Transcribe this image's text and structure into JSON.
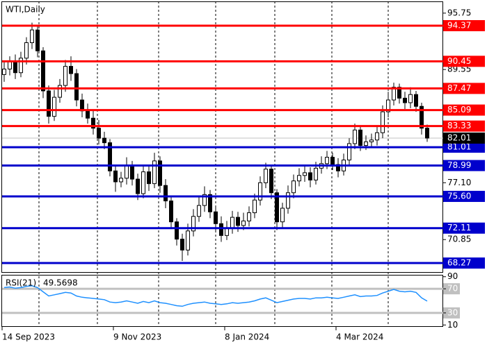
{
  "chart_data": {
    "type": "candlestick",
    "title": "WTI,Daily",
    "categories": [
      "14 Sep 2023",
      null,
      null,
      null,
      null,
      null,
      null,
      null,
      null,
      null,
      null,
      null,
      null,
      null,
      null,
      null,
      null,
      null,
      null,
      null,
      "9 Nov 2023",
      null,
      null,
      null,
      null,
      null,
      null,
      null,
      null,
      null,
      null,
      null,
      null,
      null,
      null,
      null,
      null,
      null,
      null,
      null,
      "8 Jan 2024",
      null,
      null,
      null,
      null,
      null,
      null,
      null,
      null,
      null,
      null,
      null,
      null,
      null,
      null,
      null,
      null,
      null,
      null,
      null,
      "4 Mar 2024",
      null,
      null,
      null,
      null,
      null,
      null,
      null,
      null,
      null,
      null,
      null,
      null,
      null,
      null,
      null,
      null
    ],
    "open": [
      89.0,
      89.6,
      90.4,
      89.2,
      90.8,
      92.5,
      93.9,
      91.6,
      87.2,
      84.4,
      86.5,
      87.8,
      89.9,
      89.1,
      86.2,
      85.0,
      84.2,
      83.1,
      82.0,
      81.5,
      78.4,
      77.2,
      77.6,
      79.0,
      77.5,
      75.9,
      78.3,
      77.0,
      79.5,
      76.8,
      75.1,
      72.8,
      70.9,
      69.7,
      71.8,
      73.4,
      74.6,
      75.8,
      73.9,
      72.6,
      71.3,
      72.1,
      73.3,
      72.4,
      72.9,
      73.8,
      75.2,
      77.1,
      78.6,
      76.0,
      72.8,
      74.3,
      76.0,
      77.3,
      77.9,
      78.2,
      77.4,
      78.7,
      79.2,
      79.9,
      79.1,
      78.4,
      79.6,
      81.4,
      82.9,
      81.2,
      81.6,
      81.8,
      82.6,
      84.9,
      86.2,
      87.6,
      86.4,
      85.9,
      86.8,
      85.5,
      83.1
    ],
    "high": [
      90.5,
      91.0,
      91.2,
      91.5,
      93.1,
      94.7,
      94.4,
      92.0,
      87.8,
      87.3,
      88.5,
      90.6,
      91.0,
      89.6,
      86.9,
      85.8,
      85.1,
      84.0,
      82.7,
      81.9,
      79.0,
      78.3,
      79.9,
      79.5,
      78.1,
      79.1,
      78.9,
      80.4,
      80.0,
      77.5,
      75.6,
      73.2,
      71.5,
      72.6,
      74.2,
      75.5,
      76.7,
      76.3,
      74.6,
      73.4,
      72.9,
      74.0,
      73.9,
      73.8,
      74.5,
      75.9,
      77.8,
      79.3,
      79.0,
      76.4,
      74.9,
      76.8,
      78.0,
      78.7,
      78.9,
      78.8,
      79.4,
      80.0,
      80.6,
      80.4,
      79.8,
      80.3,
      82.0,
      83.6,
      83.3,
      82.3,
      82.5,
      83.4,
      85.6,
      87.1,
      88.1,
      88.0,
      87.1,
      87.6,
      87.2,
      85.9,
      83.5
    ],
    "low": [
      88.2,
      88.9,
      88.5,
      88.7,
      90.1,
      91.8,
      90.9,
      86.4,
      83.6,
      83.9,
      85.9,
      87.1,
      88.3,
      85.5,
      84.3,
      83.6,
      82.4,
      81.3,
      80.8,
      77.8,
      76.1,
      76.6,
      76.9,
      76.8,
      75.2,
      75.4,
      76.2,
      76.5,
      76.0,
      74.3,
      72.0,
      70.2,
      68.5,
      69.1,
      71.2,
      72.8,
      73.9,
      73.2,
      71.8,
      70.6,
      70.8,
      71.5,
      71.7,
      71.9,
      72.3,
      73.2,
      74.6,
      76.5,
      75.3,
      71.9,
      72.2,
      73.7,
      75.4,
      76.7,
      77.2,
      76.6,
      76.9,
      78.1,
      78.6,
      78.5,
      77.7,
      77.9,
      79.0,
      80.8,
      80.6,
      80.7,
      81.0,
      81.2,
      82.0,
      84.3,
      85.6,
      85.8,
      85.2,
      85.3,
      84.9,
      82.4,
      81.6
    ],
    "close": [
      89.6,
      90.4,
      89.2,
      90.8,
      92.5,
      93.9,
      91.6,
      87.2,
      84.4,
      86.5,
      87.8,
      89.9,
      89.1,
      86.2,
      85.0,
      84.2,
      83.1,
      82.0,
      81.5,
      78.4,
      77.2,
      77.6,
      79.0,
      77.5,
      75.9,
      78.3,
      77.0,
      79.5,
      76.8,
      75.1,
      72.8,
      70.9,
      69.7,
      71.8,
      73.4,
      74.6,
      75.8,
      73.9,
      72.6,
      71.3,
      72.1,
      73.3,
      72.4,
      72.9,
      73.8,
      75.2,
      77.1,
      78.6,
      76.0,
      72.8,
      74.3,
      76.0,
      77.3,
      77.9,
      78.2,
      77.4,
      78.7,
      79.2,
      79.9,
      79.1,
      78.4,
      79.6,
      81.4,
      82.9,
      81.2,
      81.6,
      81.8,
      82.6,
      84.9,
      86.2,
      87.6,
      86.4,
      85.9,
      86.8,
      85.5,
      83.1,
      82.01
    ],
    "up_color": "#ffffff",
    "down_color": "#000000",
    "ylim": [
      67.28,
      97.04
    ],
    "yticks": [
      95.75,
      89.55,
      {
        "value": 77.1,
        "label": "77.10"
      },
      70.85
    ],
    "levels": [
      {
        "value": 94.37,
        "color": "#ff0000"
      },
      {
        "value": 90.45,
        "color": "#ff0000"
      },
      {
        "value": 87.47,
        "color": "#ff0000"
      },
      {
        "value": 85.09,
        "color": "#ff0000"
      },
      {
        "value": 83.33,
        "color": "#ff0000"
      },
      {
        "value": 81.01,
        "color": "#0000cc"
      },
      {
        "value": 78.99,
        "color": "#0000cc"
      },
      {
        "value": 75.6,
        "label": "75.60",
        "color": "#0000cc"
      },
      {
        "value": 72.11,
        "color": "#0000cc"
      },
      {
        "value": 68.27,
        "color": "#0000cc"
      }
    ],
    "rsi": {
      "title": "RSI(21)",
      "color": "#1e90ff",
      "values": [
        72,
        73,
        71,
        72,
        74,
        75,
        72,
        65,
        58,
        60,
        62,
        64,
        63,
        58,
        56,
        55,
        54,
        53,
        52,
        48,
        47,
        48,
        50,
        48,
        46,
        49,
        47,
        50,
        47,
        46,
        44,
        42,
        41,
        44,
        46,
        47,
        48,
        46,
        45,
        44,
        45,
        47,
        46,
        47,
        48,
        50,
        53,
        55,
        51,
        47,
        49,
        51,
        53,
        54,
        54,
        53,
        55,
        55,
        56,
        55,
        54,
        56,
        58,
        60,
        57,
        58,
        58,
        59,
        63,
        66,
        69,
        66,
        65,
        66,
        64,
        55,
        49.5698
      ],
      "ylim": [
        8,
        92
      ],
      "yticks": [
        90,
        70,
        30,
        10
      ],
      "levels": [
        70,
        30
      ]
    }
  }
}
